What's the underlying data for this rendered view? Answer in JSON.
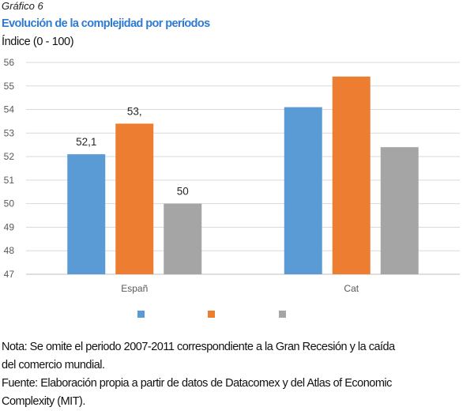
{
  "figure": {
    "label": "Gráfico 6",
    "title": "Evolución de la complejidad por períodos",
    "subtitle": "Índice (0 - 100)"
  },
  "chart_data": {
    "type": "bar",
    "categories": [
      "Españ",
      "Cat"
    ],
    "series": [
      {
        "name": "",
        "color": "#5b9bd5",
        "values": [
          52.1,
          54.1
        ],
        "labels": [
          "52,1",
          null
        ]
      },
      {
        "name": "",
        "color": "#ed7d31",
        "values": [
          53.4,
          55.4
        ],
        "labels": [
          "53,",
          null
        ]
      },
      {
        "name": "",
        "color": "#a5a5a5",
        "values": [
          50.0,
          52.4
        ],
        "labels": [
          "50",
          null
        ]
      }
    ],
    "ylim": [
      47,
      56
    ],
    "yticks": [
      47,
      48,
      49,
      50,
      51,
      52,
      53,
      54,
      55,
      56
    ],
    "grid": true,
    "legend": "bottom"
  },
  "notes": {
    "nota_line1": "Nota: Se omite el periodo 2007-2011 correspondiente a la Gran Recesión y la caída",
    "nota_line2": "del comercio mundial.",
    "fuente_line1": "Fuente: Elaboración propia a partir de datos de Datacomex y del Atlas of Economic",
    "fuente_line2": "Complexity (MIT)."
  }
}
